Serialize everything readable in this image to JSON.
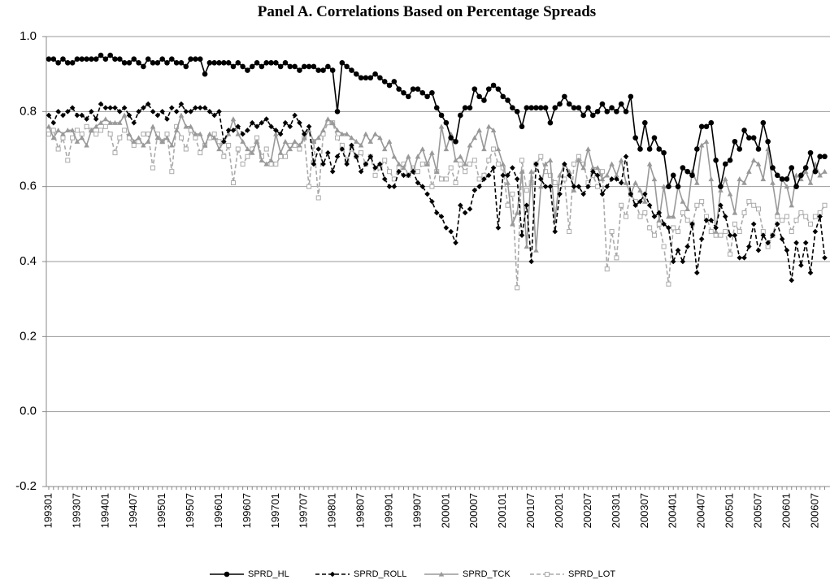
{
  "chart_data": {
    "type": "line",
    "title": "Panel A. Correlations Based on Percentage Spreads",
    "categories": [
      "199301",
      null,
      null,
      null,
      null,
      null,
      "199307",
      null,
      null,
      null,
      null,
      null,
      "199401",
      null,
      null,
      null,
      null,
      null,
      "199407",
      null,
      null,
      null,
      null,
      null,
      "199501",
      null,
      null,
      null,
      null,
      null,
      "199507",
      null,
      null,
      null,
      null,
      null,
      "199601",
      null,
      null,
      null,
      null,
      null,
      "199607",
      null,
      null,
      null,
      null,
      null,
      "199701",
      null,
      null,
      null,
      null,
      null,
      "199707",
      null,
      null,
      null,
      null,
      null,
      "199801",
      null,
      null,
      null,
      null,
      null,
      "199807",
      null,
      null,
      null,
      null,
      null,
      "199901",
      null,
      null,
      null,
      null,
      null,
      "199907",
      null,
      null,
      null,
      null,
      null,
      "200001",
      null,
      null,
      null,
      null,
      null,
      "200007",
      null,
      null,
      null,
      null,
      null,
      "200101",
      null,
      null,
      null,
      null,
      null,
      "200107",
      null,
      null,
      null,
      null,
      null,
      "200201",
      null,
      null,
      null,
      null,
      null,
      "200207",
      null,
      null,
      null,
      null,
      null,
      "200301",
      null,
      null,
      null,
      null,
      null,
      "200307",
      null,
      null,
      null,
      null,
      null,
      "200401",
      null,
      null,
      null,
      null,
      null,
      "200407",
      null,
      null,
      null,
      null,
      null,
      "200501",
      null,
      null,
      null,
      null,
      null,
      "200507",
      null,
      null,
      null,
      null,
      null,
      "200601",
      null,
      null,
      null,
      null,
      null,
      "200607",
      null,
      null
    ],
    "ylim": [
      -0.2,
      1.0
    ],
    "yticks": [
      -0.2,
      {
        "value": 0,
        "label": "0.0"
      },
      0.2,
      0.4,
      0.6,
      0.8,
      {
        "value": 1,
        "label": "1.0"
      }
    ],
    "grid": true,
    "legend": "bottom",
    "series": [
      {
        "name": "SPRD_HL",
        "color": "#000000",
        "marker": "circle",
        "dash": "none",
        "values": [
          0.94,
          0.94,
          0.93,
          0.94,
          0.93,
          0.93,
          0.94,
          0.94,
          0.94,
          0.94,
          0.94,
          0.95,
          0.94,
          0.95,
          0.94,
          0.94,
          0.93,
          0.93,
          0.94,
          0.93,
          0.92,
          0.94,
          0.93,
          0.93,
          0.94,
          0.93,
          0.94,
          0.93,
          0.93,
          0.92,
          0.94,
          0.94,
          0.94,
          0.9,
          0.93,
          0.93,
          0.93,
          0.93,
          0.93,
          0.92,
          0.93,
          0.92,
          0.91,
          0.92,
          0.93,
          0.92,
          0.93,
          0.93,
          0.93,
          0.92,
          0.93,
          0.92,
          0.92,
          0.91,
          0.92,
          0.92,
          0.92,
          0.91,
          0.91,
          0.92,
          0.91,
          0.8,
          0.93,
          0.92,
          0.91,
          0.9,
          0.89,
          0.89,
          0.89,
          0.9,
          0.89,
          0.88,
          0.87,
          0.88,
          0.86,
          0.85,
          0.84,
          0.86,
          0.86,
          0.85,
          0.84,
          0.85,
          0.81,
          0.79,
          0.77,
          0.73,
          0.72,
          0.79,
          0.81,
          0.81,
          0.86,
          0.84,
          0.83,
          0.86,
          0.87,
          0.86,
          0.84,
          0.83,
          0.81,
          0.8,
          0.76,
          0.81,
          0.81,
          0.81,
          0.81,
          0.81,
          0.77,
          0.81,
          0.82,
          0.84,
          0.82,
          0.81,
          0.81,
          0.79,
          0.81,
          0.79,
          0.8,
          0.82,
          0.8,
          0.81,
          0.8,
          0.82,
          0.8,
          0.84,
          0.73,
          0.7,
          0.77,
          0.7,
          0.73,
          0.7,
          0.69,
          0.6,
          0.63,
          0.6,
          0.65,
          0.64,
          0.63,
          0.7,
          0.76,
          0.76,
          0.77,
          0.67,
          0.6,
          0.66,
          0.67,
          0.72,
          0.7,
          0.75,
          0.73,
          0.73,
          0.7,
          0.77,
          0.72,
          0.65,
          0.63,
          0.62,
          0.62,
          0.65,
          0.6,
          0.63,
          0.65,
          0.69,
          0.64,
          0.68,
          0.68
        ]
      },
      {
        "name": "SPRD_ROLL",
        "color": "#000000",
        "marker": "diamond",
        "dash": "5,3",
        "values": [
          0.79,
          0.77,
          0.8,
          0.79,
          0.8,
          0.81,
          0.79,
          0.79,
          0.78,
          0.8,
          0.78,
          0.82,
          0.81,
          0.81,
          0.81,
          0.8,
          0.81,
          0.79,
          0.77,
          0.8,
          0.81,
          0.82,
          0.8,
          0.79,
          0.8,
          0.78,
          0.81,
          0.8,
          0.82,
          0.8,
          0.8,
          0.81,
          0.81,
          0.81,
          0.8,
          0.79,
          0.8,
          0.72,
          0.75,
          0.75,
          0.76,
          0.74,
          0.75,
          0.77,
          0.76,
          0.77,
          0.78,
          0.76,
          0.75,
          0.74,
          0.77,
          0.76,
          0.79,
          0.77,
          0.74,
          0.76,
          0.66,
          0.7,
          0.66,
          0.69,
          0.64,
          0.68,
          0.7,
          0.66,
          0.71,
          0.68,
          0.64,
          0.66,
          0.68,
          0.65,
          0.66,
          0.62,
          0.6,
          0.6,
          0.64,
          0.63,
          0.63,
          0.64,
          0.61,
          0.6,
          0.58,
          0.56,
          0.53,
          0.52,
          0.49,
          0.48,
          0.45,
          0.55,
          0.53,
          0.54,
          0.59,
          0.6,
          0.62,
          0.63,
          0.65,
          0.49,
          0.63,
          0.63,
          0.65,
          0.62,
          0.47,
          0.55,
          0.4,
          0.66,
          0.62,
          0.6,
          0.6,
          0.48,
          0.58,
          0.66,
          0.63,
          0.6,
          0.6,
          0.58,
          0.6,
          0.64,
          0.63,
          0.58,
          0.6,
          0.62,
          0.62,
          0.61,
          0.68,
          0.58,
          0.55,
          0.56,
          0.58,
          0.55,
          0.52,
          0.53,
          0.5,
          0.49,
          0.4,
          0.43,
          0.4,
          0.44,
          0.5,
          0.37,
          0.46,
          0.51,
          0.51,
          0.49,
          0.55,
          0.52,
          0.47,
          0.47,
          0.41,
          0.41,
          0.44,
          0.5,
          0.43,
          0.47,
          0.45,
          0.47,
          0.5,
          0.46,
          0.43,
          0.35,
          0.45,
          0.39,
          0.45,
          0.37,
          0.48,
          0.52,
          0.41
        ]
      },
      {
        "name": "SPRD_TCK",
        "color": "#999999",
        "marker": "triangle",
        "dash": "none",
        "values": [
          0.76,
          0.73,
          0.75,
          0.74,
          0.75,
          0.75,
          0.72,
          0.73,
          0.71,
          0.75,
          0.76,
          0.77,
          0.78,
          0.77,
          0.77,
          0.77,
          0.79,
          0.74,
          0.72,
          0.73,
          0.71,
          0.72,
          0.76,
          0.73,
          0.72,
          0.73,
          0.71,
          0.75,
          0.79,
          0.76,
          0.76,
          0.74,
          0.74,
          0.71,
          0.74,
          0.73,
          0.7,
          0.72,
          0.74,
          0.78,
          0.74,
          0.72,
          0.7,
          0.69,
          0.72,
          0.67,
          0.66,
          0.67,
          0.74,
          0.69,
          0.72,
          0.7,
          0.72,
          0.71,
          0.73,
          0.75,
          0.72,
          0.73,
          0.75,
          0.78,
          0.77,
          0.75,
          0.74,
          0.74,
          0.73,
          0.72,
          0.71,
          0.74,
          0.72,
          0.74,
          0.73,
          0.7,
          0.72,
          0.68,
          0.66,
          0.65,
          0.68,
          0.64,
          0.68,
          0.7,
          0.66,
          0.69,
          0.64,
          0.76,
          0.7,
          0.74,
          0.67,
          0.68,
          0.66,
          0.71,
          0.73,
          0.75,
          0.7,
          0.76,
          0.75,
          0.7,
          0.66,
          0.61,
          0.5,
          0.53,
          0.64,
          0.44,
          0.64,
          0.43,
          0.6,
          0.66,
          0.67,
          0.51,
          0.63,
          0.66,
          0.64,
          0.59,
          0.67,
          0.65,
          0.7,
          0.65,
          0.65,
          0.62,
          0.63,
          0.66,
          0.63,
          0.67,
          0.61,
          0.58,
          0.61,
          0.59,
          0.56,
          0.66,
          0.62,
          0.51,
          0.6,
          0.52,
          0.52,
          0.6,
          0.56,
          0.54,
          0.64,
          0.61,
          0.71,
          0.72,
          0.62,
          0.48,
          0.59,
          0.62,
          0.58,
          0.53,
          0.62,
          0.61,
          0.64,
          0.67,
          0.66,
          0.62,
          0.7,
          0.61,
          0.53,
          0.62,
          0.6,
          0.55,
          0.63,
          0.62,
          0.64,
          0.61,
          0.66,
          0.63,
          0.64
        ]
      },
      {
        "name": "SPRD_LOT",
        "color": "#aaaaaa",
        "marker": "square",
        "dash": "5,3",
        "values": [
          0.74,
          0.75,
          0.7,
          0.73,
          0.67,
          0.73,
          0.75,
          0.74,
          0.76,
          0.75,
          0.74,
          0.75,
          0.76,
          0.74,
          0.69,
          0.73,
          0.75,
          0.73,
          0.71,
          0.72,
          0.74,
          0.74,
          0.65,
          0.74,
          0.72,
          0.74,
          0.64,
          0.76,
          0.73,
          0.7,
          0.75,
          0.73,
          0.69,
          0.71,
          0.73,
          0.74,
          0.72,
          0.68,
          0.71,
          0.61,
          0.7,
          0.66,
          0.68,
          0.7,
          0.73,
          0.68,
          0.7,
          0.66,
          0.66,
          0.68,
          0.68,
          0.71,
          0.71,
          0.7,
          0.73,
          0.6,
          0.72,
          0.57,
          0.74,
          0.77,
          0.77,
          0.73,
          0.71,
          0.67,
          0.7,
          0.68,
          0.69,
          0.66,
          0.68,
          0.63,
          0.65,
          0.67,
          0.64,
          0.62,
          0.65,
          0.66,
          0.63,
          0.65,
          0.64,
          0.66,
          0.66,
          0.6,
          0.64,
          0.62,
          0.62,
          0.65,
          0.61,
          0.66,
          0.64,
          0.66,
          0.67,
          0.62,
          0.63,
          0.67,
          0.7,
          0.66,
          0.65,
          0.55,
          0.58,
          0.33,
          0.67,
          0.59,
          0.61,
          0.66,
          0.68,
          0.64,
          0.63,
          0.61,
          0.6,
          0.62,
          0.48,
          0.66,
          0.68,
          0.66,
          0.61,
          0.63,
          0.6,
          0.64,
          0.38,
          0.48,
          0.41,
          0.55,
          0.52,
          0.58,
          0.56,
          0.52,
          0.53,
          0.49,
          0.47,
          0.5,
          0.44,
          0.34,
          0.49,
          0.48,
          0.53,
          0.51,
          0.5,
          0.55,
          0.56,
          0.52,
          0.48,
          0.47,
          0.47,
          0.48,
          0.42,
          0.5,
          0.48,
          0.53,
          0.56,
          0.55,
          0.54,
          0.48,
          0.44,
          0.47,
          0.52,
          0.51,
          0.52,
          0.48,
          0.51,
          0.53,
          0.52,
          0.5,
          0.52,
          0.53,
          0.55
        ]
      }
    ]
  }
}
